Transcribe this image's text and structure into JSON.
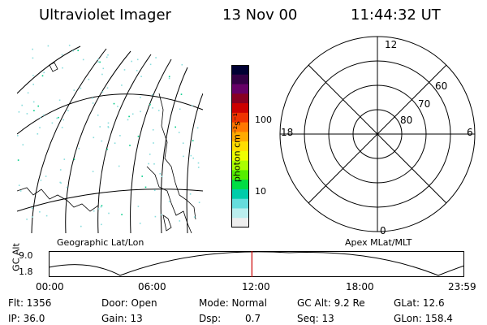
{
  "header": {
    "instrument": "Ultraviolet Imager",
    "date": "13 Nov 00",
    "time": "11:44:32 UT"
  },
  "colorbar": {
    "label": "photon cm⁻²s⁻¹",
    "ticks": [
      "100",
      "10"
    ],
    "colors": [
      "#000033",
      "#330044",
      "#660066",
      "#880022",
      "#cc0000",
      "#ee3300",
      "#ff7700",
      "#ffaa00",
      "#ffdd00",
      "#eeff00",
      "#aaff00",
      "#55ee00",
      "#00dd44",
      "#00ccaa",
      "#66dddd",
      "#bbeeee",
      "#eeeeee"
    ]
  },
  "polar": {
    "labels_clock": [
      "12",
      "6",
      "0",
      "18"
    ],
    "labels_lat": [
      "60",
      "70",
      "80"
    ]
  },
  "projection_labels": {
    "left": "Geographic Lat/Lon",
    "right": "Apex MLat/MLT"
  },
  "timeline": {
    "axis_label": "GC Alt",
    "y_ticks": [
      "9.0",
      "1.8"
    ],
    "x_ticks": [
      "00:00",
      "06:00",
      "12:00",
      "18:00",
      "23:59"
    ],
    "current_time_fraction": 0.489,
    "marker_color": "#cc0000"
  },
  "info": {
    "flt": "Flt: 1356",
    "ip": "IP: 36.0",
    "door": "Door: Open",
    "gain": "Gain: 13",
    "mode": "Mode: Normal",
    "dsp": "Dsp:",
    "dsp_val": "0.7",
    "gcalt": "GC Alt: 9.2 Re",
    "seq": "Seq: 13",
    "glat": "GLat:  12.6",
    "glon": "GLon: 158.4"
  }
}
